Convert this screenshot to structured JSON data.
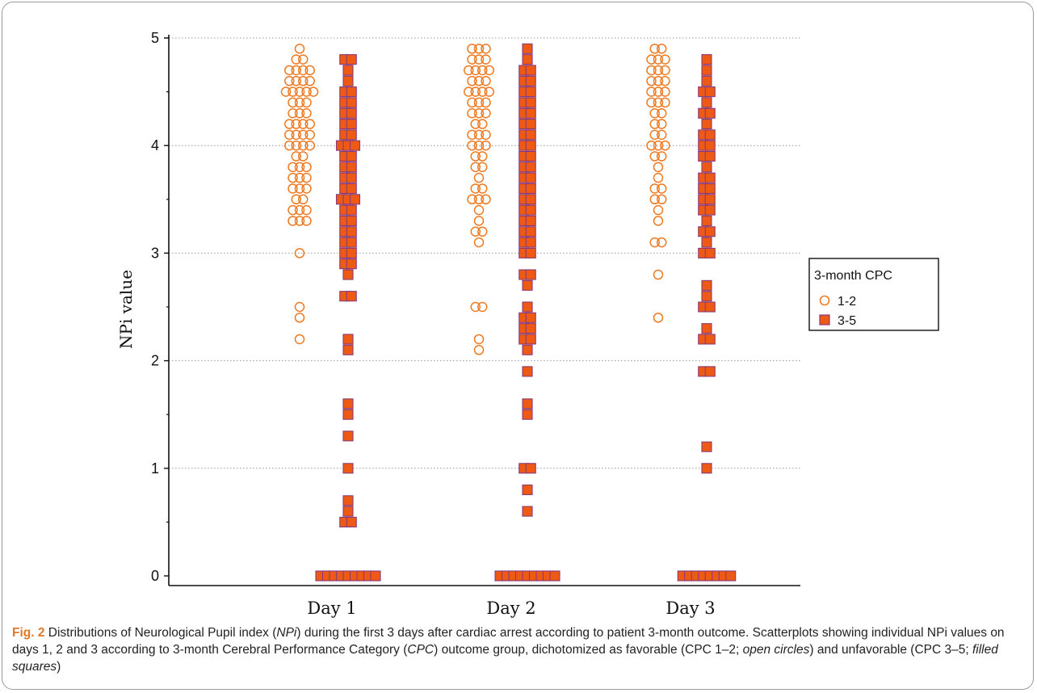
{
  "chart_data": {
    "type": "scatter",
    "ylabel": "NPi value",
    "ylim": [
      0,
      5
    ],
    "yticks": [
      "0",
      "1",
      "2",
      "3",
      "4",
      "5"
    ],
    "categories": [
      "Day 1",
      "Day 2",
      "Day 3"
    ],
    "grid": "horizontal dotted",
    "legend": {
      "title": "3-month CPC",
      "position": "right",
      "entries": [
        "1-2",
        "3-5"
      ]
    },
    "series": [
      {
        "name": "1-2",
        "marker": "open-circle",
        "color": "#ee7a22",
        "points": [
          {
            "x": "Day 1",
            "values": [
              4.9,
              4.8,
              4.8,
              4.7,
              4.7,
              4.7,
              4.7,
              4.6,
              4.6,
              4.6,
              4.6,
              4.5,
              4.5,
              4.5,
              4.5,
              4.5,
              4.4,
              4.4,
              4.4,
              4.3,
              4.3,
              4.3,
              4.2,
              4.2,
              4.2,
              4.2,
              4.1,
              4.1,
              4.1,
              4.1,
              4.0,
              4.0,
              4.0,
              4.0,
              3.9,
              3.9,
              3.8,
              3.8,
              3.8,
              3.7,
              3.7,
              3.7,
              3.6,
              3.6,
              3.6,
              3.5,
              3.5,
              3.4,
              3.4,
              3.4,
              3.3,
              3.3,
              3.3,
              3.0,
              2.5,
              2.4,
              2.2
            ]
          },
          {
            "x": "Day 2",
            "values": [
              4.9,
              4.9,
              4.9,
              4.8,
              4.8,
              4.8,
              4.7,
              4.7,
              4.7,
              4.7,
              4.6,
              4.6,
              4.6,
              4.5,
              4.5,
              4.5,
              4.5,
              4.4,
              4.4,
              4.4,
              4.3,
              4.3,
              4.3,
              4.2,
              4.2,
              4.1,
              4.1,
              4.1,
              4.0,
              4.0,
              4.0,
              3.9,
              3.9,
              3.8,
              3.8,
              3.7,
              3.6,
              3.6,
              3.5,
              3.5,
              3.5,
              3.4,
              3.3,
              3.2,
              3.2,
              3.1,
              2.5,
              2.5,
              2.2,
              2.1
            ]
          },
          {
            "x": "Day 3",
            "values": [
              4.9,
              4.9,
              4.8,
              4.8,
              4.8,
              4.7,
              4.7,
              4.7,
              4.6,
              4.6,
              4.6,
              4.5,
              4.5,
              4.5,
              4.4,
              4.4,
              4.4,
              4.3,
              4.3,
              4.2,
              4.2,
              4.1,
              4.1,
              4.0,
              4.0,
              4.0,
              3.9,
              3.9,
              3.8,
              3.7,
              3.6,
              3.6,
              3.5,
              3.5,
              3.4,
              3.3,
              3.1,
              3.1,
              2.8,
              2.4
            ]
          }
        ]
      },
      {
        "name": "3-5",
        "marker": "filled-square",
        "color": "#ee5a14",
        "points": [
          {
            "x": "Day 1",
            "values": [
              4.8,
              4.8,
              4.7,
              4.6,
              4.5,
              4.5,
              4.4,
              4.4,
              4.3,
              4.3,
              4.2,
              4.2,
              4.1,
              4.1,
              4.0,
              4.0,
              4.0,
              3.9,
              3.9,
              3.8,
              3.8,
              3.7,
              3.7,
              3.6,
              3.6,
              3.5,
              3.5,
              3.5,
              3.4,
              3.4,
              3.3,
              3.3,
              3.2,
              3.2,
              3.1,
              3.1,
              3.0,
              3.0,
              2.9,
              2.9,
              2.8,
              2.6,
              2.6,
              2.2,
              2.1,
              1.6,
              1.5,
              1.3,
              1.0,
              0.7,
              0.6,
              0.5,
              0.5,
              0,
              0,
              0,
              0,
              0,
              0,
              0,
              0,
              0
            ]
          },
          {
            "x": "Day 2",
            "values": [
              4.9,
              4.8,
              4.7,
              4.7,
              4.6,
              4.6,
              4.5,
              4.5,
              4.4,
              4.4,
              4.3,
              4.3,
              4.2,
              4.2,
              4.1,
              4.1,
              4.0,
              4.0,
              3.9,
              3.9,
              3.8,
              3.8,
              3.7,
              3.7,
              3.6,
              3.6,
              3.5,
              3.5,
              3.4,
              3.4,
              3.3,
              3.3,
              3.2,
              3.2,
              3.1,
              3.1,
              3.0,
              3.0,
              2.8,
              2.8,
              2.7,
              2.5,
              2.4,
              2.4,
              2.3,
              2.3,
              2.2,
              2.2,
              2.1,
              1.9,
              1.6,
              1.5,
              1.0,
              1.0,
              0.8,
              0.6,
              0,
              0,
              0,
              0,
              0,
              0,
              0,
              0,
              0
            ]
          },
          {
            "x": "Day 3",
            "values": [
              4.8,
              4.7,
              4.6,
              4.5,
              4.5,
              4.4,
              4.3,
              4.3,
              4.2,
              4.1,
              4.1,
              4.0,
              4.0,
              3.9,
              3.9,
              3.8,
              3.7,
              3.7,
              3.6,
              3.6,
              3.5,
              3.5,
              3.4,
              3.4,
              3.3,
              3.2,
              3.2,
              3.1,
              3.0,
              3.0,
              2.7,
              2.6,
              2.5,
              2.5,
              2.3,
              2.2,
              2.2,
              1.9,
              1.9,
              1.2,
              1.0,
              0,
              0,
              0,
              0,
              0,
              0,
              0,
              0
            ]
          }
        ]
      }
    ]
  },
  "caption": {
    "label": "Fig. 2",
    "text_1": " Distributions of Neurological Pupil index (",
    "abbr_npi": "NPi",
    "text_2": ") during the first 3 days after cardiac arrest according to patient 3-month outcome. Scatterplots showing individual NPi values on days 1, 2 and 3 according to 3-month Cerebral Performance Category (",
    "abbr_cpc": "CPC",
    "text_3": ") outcome group, dichotomized as favorable (CPC 1–2; ",
    "open_circles": "open circles",
    "text_4": ") and unfavorable (CPC 3–5; ",
    "filled_squares": "filled squares",
    "text_5": ")"
  }
}
